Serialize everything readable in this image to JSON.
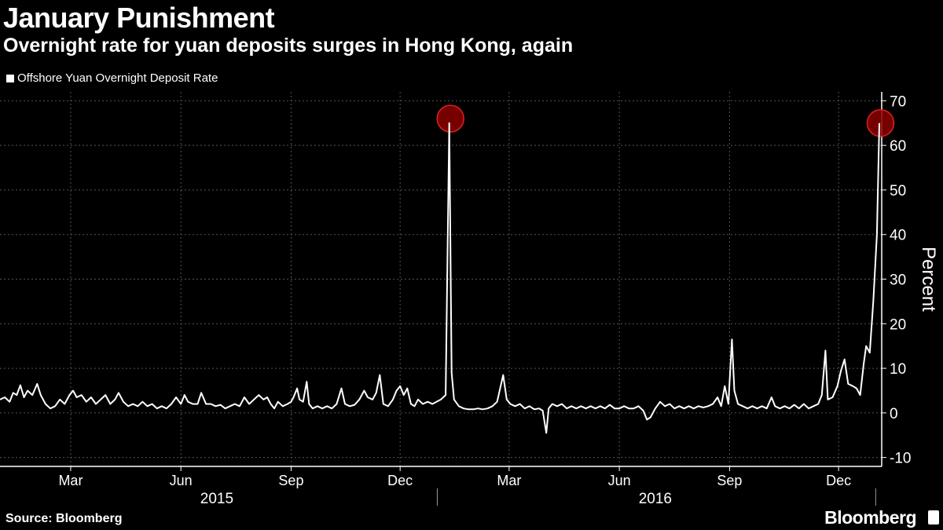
{
  "title": "January Punishment",
  "subtitle": "Overnight rate for yuan deposits surges in Hong Kong, again",
  "source": "Source: Bloomberg",
  "brand": "Bloomberg",
  "chart_data": {
    "type": "line",
    "title": "January Punishment",
    "subtitle": "Overnight rate for yuan deposits surges in Hong Kong, again",
    "ylabel": "Percent",
    "xlabel": "",
    "ylim": [
      -12,
      72
    ],
    "y_ticks": [
      70,
      60,
      50,
      40,
      30,
      20,
      10,
      0,
      -10
    ],
    "x_range": [
      "2015-01-01",
      "2017-01-06"
    ],
    "month_ticks": [
      {
        "label": "Mar",
        "date": "2015-03-01"
      },
      {
        "label": "Jun",
        "date": "2015-06-01"
      },
      {
        "label": "Sep",
        "date": "2015-09-01"
      },
      {
        "label": "Dec",
        "date": "2015-12-01"
      },
      {
        "label": "Mar",
        "date": "2016-03-01"
      },
      {
        "label": "Jun",
        "date": "2016-06-01"
      },
      {
        "label": "Sep",
        "date": "2016-09-01"
      },
      {
        "label": "Dec",
        "date": "2016-12-01"
      }
    ],
    "year_labels": [
      {
        "label": "2015",
        "date": "2015-07-01"
      },
      {
        "label": "2016",
        "date": "2016-07-01"
      }
    ],
    "year_separators": [
      "2016-01-01",
      "2017-01-01"
    ],
    "grid": true,
    "legend": "top-left",
    "colors": {
      "line": "#ffffff",
      "highlight": "#8b0000",
      "highlight_edge": "#e02020",
      "grid": "#555555"
    },
    "highlights": [
      {
        "date": "2016-01-12",
        "value": 66
      },
      {
        "date": "2017-01-05",
        "value": 65
      }
    ],
    "series": [
      {
        "name": "Offshore Yuan Overnight Deposit Rate",
        "points": [
          [
            "2015-01-01",
            3.0
          ],
          [
            "2015-01-05",
            3.5
          ],
          [
            "2015-01-09",
            2.5
          ],
          [
            "2015-01-12",
            4.5
          ],
          [
            "2015-01-15",
            4.0
          ],
          [
            "2015-01-18",
            6.2
          ],
          [
            "2015-01-21",
            3.5
          ],
          [
            "2015-01-24",
            5.0
          ],
          [
            "2015-01-28",
            4.0
          ],
          [
            "2015-02-01",
            6.5
          ],
          [
            "2015-02-04",
            4.0
          ],
          [
            "2015-02-08",
            2.0
          ],
          [
            "2015-02-12",
            1.0
          ],
          [
            "2015-02-16",
            1.5
          ],
          [
            "2015-02-20",
            3.0
          ],
          [
            "2015-02-24",
            2.0
          ],
          [
            "2015-02-28",
            4.0
          ],
          [
            "2015-03-03",
            5.0
          ],
          [
            "2015-03-06",
            3.5
          ],
          [
            "2015-03-10",
            4.0
          ],
          [
            "2015-03-14",
            2.5
          ],
          [
            "2015-03-18",
            3.5
          ],
          [
            "2015-03-22",
            2.0
          ],
          [
            "2015-03-26",
            3.0
          ],
          [
            "2015-03-30",
            4.0
          ],
          [
            "2015-04-03",
            2.0
          ],
          [
            "2015-04-07",
            3.0
          ],
          [
            "2015-04-10",
            4.5
          ],
          [
            "2015-04-14",
            2.5
          ],
          [
            "2015-04-18",
            1.5
          ],
          [
            "2015-04-22",
            2.0
          ],
          [
            "2015-04-26",
            1.5
          ],
          [
            "2015-04-30",
            2.5
          ],
          [
            "2015-05-04",
            1.5
          ],
          [
            "2015-05-08",
            2.0
          ],
          [
            "2015-05-12",
            1.0
          ],
          [
            "2015-05-16",
            1.5
          ],
          [
            "2015-05-20",
            1.0
          ],
          [
            "2015-05-24",
            2.0
          ],
          [
            "2015-05-28",
            3.5
          ],
          [
            "2015-06-01",
            2.0
          ],
          [
            "2015-06-04",
            4.0
          ],
          [
            "2015-06-07",
            2.5
          ],
          [
            "2015-06-11",
            2.0
          ],
          [
            "2015-06-15",
            2.0
          ],
          [
            "2015-06-18",
            4.5
          ],
          [
            "2015-06-22",
            2.0
          ],
          [
            "2015-06-26",
            2.0
          ],
          [
            "2015-06-30",
            1.5
          ],
          [
            "2015-07-04",
            1.8
          ],
          [
            "2015-07-08",
            1.0
          ],
          [
            "2015-07-12",
            1.5
          ],
          [
            "2015-07-16",
            2.0
          ],
          [
            "2015-07-20",
            1.5
          ],
          [
            "2015-07-24",
            3.5
          ],
          [
            "2015-07-28",
            2.0
          ],
          [
            "2015-08-01",
            3.0
          ],
          [
            "2015-08-05",
            4.0
          ],
          [
            "2015-08-09",
            3.0
          ],
          [
            "2015-08-12",
            3.5
          ],
          [
            "2015-08-15",
            2.0
          ],
          [
            "2015-08-18",
            1.0
          ],
          [
            "2015-08-21",
            2.5
          ],
          [
            "2015-08-25",
            1.5
          ],
          [
            "2015-08-29",
            2.0
          ],
          [
            "2015-09-01",
            2.5
          ],
          [
            "2015-09-03",
            3.5
          ],
          [
            "2015-09-06",
            5.5
          ],
          [
            "2015-09-08",
            3.0
          ],
          [
            "2015-09-11",
            2.5
          ],
          [
            "2015-09-14",
            7.0
          ],
          [
            "2015-09-16",
            2.0
          ],
          [
            "2015-09-19",
            1.0
          ],
          [
            "2015-09-23",
            1.5
          ],
          [
            "2015-09-27",
            1.0
          ],
          [
            "2015-10-01",
            1.5
          ],
          [
            "2015-10-05",
            1.0
          ],
          [
            "2015-10-09",
            2.0
          ],
          [
            "2015-10-13",
            5.5
          ],
          [
            "2015-10-16",
            2.0
          ],
          [
            "2015-10-20",
            1.5
          ],
          [
            "2015-10-24",
            1.8
          ],
          [
            "2015-10-28",
            3.0
          ],
          [
            "2015-11-01",
            5.0
          ],
          [
            "2015-11-04",
            3.5
          ],
          [
            "2015-11-08",
            3.0
          ],
          [
            "2015-11-11",
            4.5
          ],
          [
            "2015-11-14",
            8.5
          ],
          [
            "2015-11-17",
            2.0
          ],
          [
            "2015-11-21",
            1.5
          ],
          [
            "2015-11-25",
            3.0
          ],
          [
            "2015-11-28",
            5.0
          ],
          [
            "2015-12-01",
            6.0
          ],
          [
            "2015-12-04",
            4.0
          ],
          [
            "2015-12-07",
            5.5
          ],
          [
            "2015-12-10",
            2.0
          ],
          [
            "2015-12-13",
            1.5
          ],
          [
            "2015-12-16",
            3.0
          ],
          [
            "2015-12-20",
            2.0
          ],
          [
            "2015-12-24",
            2.5
          ],
          [
            "2015-12-28",
            2.0
          ],
          [
            "2016-01-04",
            3.0
          ],
          [
            "2016-01-08",
            4.0
          ],
          [
            "2016-01-11",
            65.0
          ],
          [
            "2016-01-13",
            9.0
          ],
          [
            "2016-01-15",
            3.0
          ],
          [
            "2016-01-19",
            1.5
          ],
          [
            "2016-01-23",
            1.0
          ],
          [
            "2016-01-27",
            0.8
          ],
          [
            "2016-01-31",
            0.8
          ],
          [
            "2016-02-04",
            1.0
          ],
          [
            "2016-02-08",
            0.8
          ],
          [
            "2016-02-12",
            1.0
          ],
          [
            "2016-02-16",
            1.5
          ],
          [
            "2016-02-20",
            2.5
          ],
          [
            "2016-02-25",
            8.5
          ],
          [
            "2016-02-28",
            3.0
          ],
          [
            "2016-03-02",
            2.0
          ],
          [
            "2016-03-06",
            1.5
          ],
          [
            "2016-03-10",
            2.0
          ],
          [
            "2016-03-14",
            1.0
          ],
          [
            "2016-03-18",
            1.5
          ],
          [
            "2016-03-22",
            0.8
          ],
          [
            "2016-03-26",
            1.0
          ],
          [
            "2016-03-29",
            0.5
          ],
          [
            "2016-04-01",
            -4.5
          ],
          [
            "2016-04-03",
            1.0
          ],
          [
            "2016-04-06",
            2.0
          ],
          [
            "2016-04-10",
            1.5
          ],
          [
            "2016-04-14",
            2.0
          ],
          [
            "2016-04-18",
            1.0
          ],
          [
            "2016-04-22",
            1.5
          ],
          [
            "2016-04-26",
            1.0
          ],
          [
            "2016-04-30",
            1.5
          ],
          [
            "2016-05-04",
            1.0
          ],
          [
            "2016-05-08",
            1.5
          ],
          [
            "2016-05-12",
            1.0
          ],
          [
            "2016-05-16",
            1.5
          ],
          [
            "2016-05-20",
            1.0
          ],
          [
            "2016-05-24",
            1.8
          ],
          [
            "2016-05-28",
            1.0
          ],
          [
            "2016-06-01",
            1.0
          ],
          [
            "2016-06-05",
            1.5
          ],
          [
            "2016-06-09",
            1.0
          ],
          [
            "2016-06-13",
            1.0
          ],
          [
            "2016-06-17",
            1.5
          ],
          [
            "2016-06-21",
            0.5
          ],
          [
            "2016-06-24",
            -1.5
          ],
          [
            "2016-06-27",
            -1.0
          ],
          [
            "2016-07-01",
            1.0
          ],
          [
            "2016-07-05",
            2.5
          ],
          [
            "2016-07-09",
            1.5
          ],
          [
            "2016-07-13",
            2.0
          ],
          [
            "2016-07-17",
            1.0
          ],
          [
            "2016-07-21",
            1.5
          ],
          [
            "2016-07-25",
            1.0
          ],
          [
            "2016-07-29",
            1.5
          ],
          [
            "2016-08-02",
            1.0
          ],
          [
            "2016-08-06",
            1.5
          ],
          [
            "2016-08-10",
            1.2
          ],
          [
            "2016-08-14",
            1.5
          ],
          [
            "2016-08-18",
            2.0
          ],
          [
            "2016-08-22",
            3.5
          ],
          [
            "2016-08-25",
            1.5
          ],
          [
            "2016-08-28",
            6.0
          ],
          [
            "2016-08-31",
            2.0
          ],
          [
            "2016-09-03",
            16.5
          ],
          [
            "2016-09-05",
            5.0
          ],
          [
            "2016-09-08",
            2.0
          ],
          [
            "2016-09-12",
            1.5
          ],
          [
            "2016-09-16",
            1.0
          ],
          [
            "2016-09-20",
            1.5
          ],
          [
            "2016-09-24",
            1.0
          ],
          [
            "2016-09-28",
            1.5
          ],
          [
            "2016-10-02",
            1.0
          ],
          [
            "2016-10-06",
            3.5
          ],
          [
            "2016-10-09",
            1.5
          ],
          [
            "2016-10-13",
            1.0
          ],
          [
            "2016-10-17",
            1.5
          ],
          [
            "2016-10-21",
            1.0
          ],
          [
            "2016-10-25",
            1.8
          ],
          [
            "2016-10-29",
            1.0
          ],
          [
            "2016-11-02",
            2.0
          ],
          [
            "2016-11-06",
            1.0
          ],
          [
            "2016-11-10",
            1.5
          ],
          [
            "2016-11-14",
            2.0
          ],
          [
            "2016-11-17",
            4.0
          ],
          [
            "2016-11-20",
            14.0
          ],
          [
            "2016-11-22",
            3.0
          ],
          [
            "2016-11-26",
            3.5
          ],
          [
            "2016-11-30",
            6.0
          ],
          [
            "2016-12-03",
            9.5
          ],
          [
            "2016-12-06",
            12.0
          ],
          [
            "2016-12-09",
            6.5
          ],
          [
            "2016-12-13",
            6.0
          ],
          [
            "2016-12-16",
            5.5
          ],
          [
            "2016-12-19",
            4.0
          ],
          [
            "2016-12-22",
            11.0
          ],
          [
            "2016-12-24",
            15.0
          ],
          [
            "2016-12-27",
            13.5
          ],
          [
            "2016-12-30",
            25.0
          ],
          [
            "2017-01-02",
            40.0
          ],
          [
            "2017-01-04",
            65.0
          ]
        ]
      }
    ]
  }
}
